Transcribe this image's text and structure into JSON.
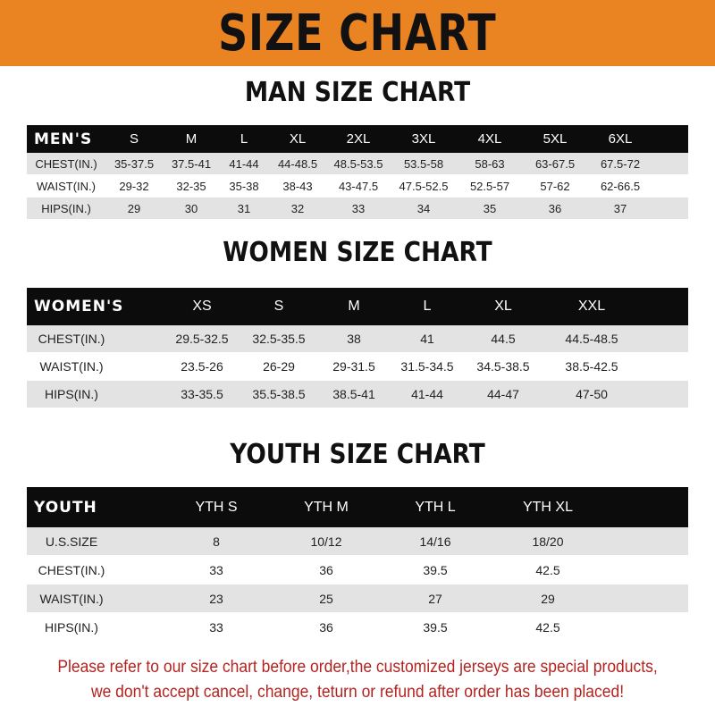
{
  "banner_title": "SIZE CHART",
  "men": {
    "title": "MAN SIZE CHART",
    "header": [
      "MEN'S",
      "S",
      "M",
      "L",
      "XL",
      "2XL",
      "3XL",
      "4XL",
      "5XL",
      "6XL"
    ],
    "rows": [
      [
        "CHEST(IN.)",
        "35-37.5",
        "37.5-41",
        "41-44",
        "44-48.5",
        "48.5-53.5",
        "53.5-58",
        "58-63",
        "63-67.5",
        "67.5-72"
      ],
      [
        "WAIST(IN.)",
        "29-32",
        "32-35",
        "35-38",
        "38-43",
        "43-47.5",
        "47.5-52.5",
        "52.5-57",
        "57-62",
        "62-66.5"
      ],
      [
        "HIPS(IN.)",
        "29",
        "30",
        "31",
        "32",
        "33",
        "34",
        "35",
        "36",
        "37"
      ]
    ]
  },
  "women": {
    "title": "WOMEN SIZE CHART",
    "header": [
      "WOMEN'S",
      "XS",
      "S",
      "M",
      "L",
      "XL",
      "XXL"
    ],
    "rows": [
      [
        "CHEST(IN.)",
        "29.5-32.5",
        "32.5-35.5",
        "38",
        "41",
        "44.5",
        "44.5-48.5"
      ],
      [
        "WAIST(IN.)",
        "23.5-26",
        "26-29",
        "29-31.5",
        "31.5-34.5",
        "34.5-38.5",
        "38.5-42.5"
      ],
      [
        "HIPS(IN.)",
        "33-35.5",
        "35.5-38.5",
        "38.5-41",
        "41-44",
        "44-47",
        "47-50"
      ]
    ]
  },
  "youth": {
    "title": "YOUTH SIZE CHART",
    "header": [
      "YOUTH",
      "YTH S",
      "YTH M",
      "YTH L",
      "YTH XL"
    ],
    "rows": [
      [
        "U.S.SIZE",
        "8",
        "10/12",
        "14/16",
        "18/20"
      ],
      [
        "CHEST(IN.)",
        "33",
        "36",
        "39.5",
        "42.5"
      ],
      [
        "WAIST(IN.)",
        "23",
        "25",
        "27",
        "29"
      ],
      [
        "HIPS(IN.)",
        "33",
        "36",
        "39.5",
        "42.5"
      ]
    ]
  },
  "notice": {
    "line1": "Please refer to our size chart before order,the customized jerseys are special products,",
    "line2": "we don't accept cancel, change, teturn or refund after order has been placed!"
  },
  "colors": {
    "banner": "#ea8422",
    "header_row": "#0c0c0c",
    "stripe": "#e3e3e3",
    "notice": "#b3231f"
  }
}
